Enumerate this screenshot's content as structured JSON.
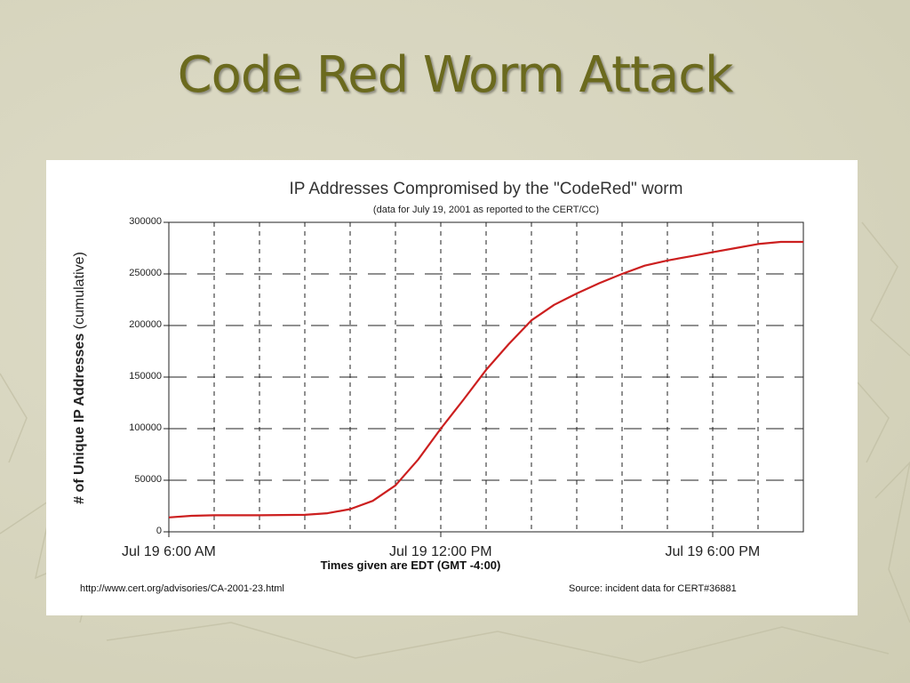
{
  "slide": {
    "title": "Code Red Worm Attack"
  },
  "chart_data": {
    "type": "line",
    "title": "IP Addresses Compromised by the \"CodeRed\" worm",
    "subtitle": "(data for July 19, 2001 as reported to the CERT/CC)",
    "ylabel_bold": "# of Unique IP Addresses",
    "ylabel_rest": " (cumulative)",
    "xlabel": "Times given are EDT (GMT -4:00)",
    "ylim": [
      0,
      300000
    ],
    "yticks": [
      0,
      50000,
      100000,
      150000,
      200000,
      250000,
      300000
    ],
    "ytick_labels": [
      "0",
      "50000",
      "100000",
      "150000",
      "200000",
      "250000",
      "300000"
    ],
    "xlim": [
      6.0,
      20.0
    ],
    "xtick_values": [
      6,
      12,
      18
    ],
    "xtick_labels": [
      "Jul 19 6:00 AM",
      "Jul 19 12:00 PM",
      "Jul 19 6:00 PM"
    ],
    "grid": true,
    "color": "#cc1f1f",
    "series": [
      {
        "x": [
          6.0,
          6.5,
          7.0,
          8.0,
          9.0,
          9.5,
          10.0,
          10.5,
          11.0,
          11.5,
          12.0,
          12.5,
          13.0,
          13.5,
          14.0,
          14.5,
          15.0,
          15.5,
          16.0,
          16.5,
          17.0,
          17.5,
          18.0,
          18.5,
          19.0,
          19.5,
          20.0
        ],
        "y": [
          14000,
          15500,
          16000,
          16000,
          16500,
          18000,
          22000,
          30000,
          45000,
          70000,
          100000,
          128000,
          157000,
          182000,
          205000,
          220000,
          231000,
          241000,
          250000,
          258000,
          263000,
          267000,
          271000,
          275000,
          279000,
          281000,
          281000
        ]
      }
    ]
  },
  "footer": {
    "url": "http://www.cert.org/advisories/CA-2001-23.html",
    "source": "Source: incident data for CERT#36881"
  }
}
